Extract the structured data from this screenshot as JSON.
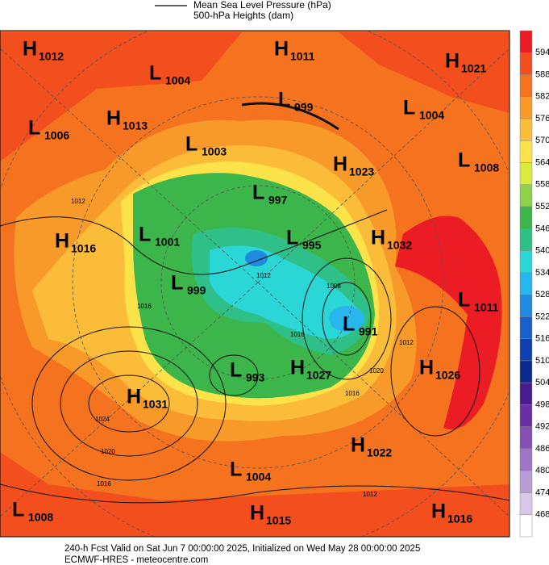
{
  "legend": [
    {
      "label": "Mean Sea Level Pressure (hPa)"
    },
    {
      "label": "500-hPa Heights (dam)"
    }
  ],
  "colorbar": {
    "labels": [
      "594",
      "588",
      "582",
      "576",
      "570",
      "564",
      "558",
      "552",
      "546",
      "540",
      "534",
      "528",
      "522",
      "516",
      "510",
      "504",
      "498",
      "492",
      "486",
      "480",
      "474",
      "468"
    ],
    "colors": [
      "#ec1c24",
      "#f24e1e",
      "#f5721f",
      "#f89a2a",
      "#fbbc3a",
      "#fde34a",
      "#d8ec3e",
      "#8fd14a",
      "#3cb54a",
      "#2fc08a",
      "#2bd6d6",
      "#27b6ee",
      "#1f8be0",
      "#1760cc",
      "#1040b0",
      "#0c2a8c",
      "#4b1a8c",
      "#6a2fa0",
      "#8451b3",
      "#9f76c5",
      "#b99dd8",
      "#d7c8ea",
      "#ffffff"
    ]
  },
  "centers": [
    {
      "kind": "H",
      "value": "1012"
    },
    {
      "kind": "L",
      "value": "1004"
    },
    {
      "kind": "H",
      "value": "1011"
    },
    {
      "kind": "H",
      "value": "1021"
    },
    {
      "kind": "L",
      "value": "999"
    },
    {
      "kind": "L",
      "value": "1004"
    },
    {
      "kind": "L",
      "value": "1006"
    },
    {
      "kind": "H",
      "value": "1013"
    },
    {
      "kind": "L",
      "value": "1003"
    },
    {
      "kind": "H",
      "value": "1023"
    },
    {
      "kind": "L",
      "value": "1008"
    },
    {
      "kind": "L",
      "value": "997"
    },
    {
      "kind": "H",
      "value": "1016"
    },
    {
      "kind": "L",
      "value": "1001"
    },
    {
      "kind": "L",
      "value": "995"
    },
    {
      "kind": "H",
      "value": "1032"
    },
    {
      "kind": "L",
      "value": "999"
    },
    {
      "kind": "L",
      "value": "1011"
    },
    {
      "kind": "L",
      "value": "991"
    },
    {
      "kind": "L",
      "value": "993"
    },
    {
      "kind": "H",
      "value": "1027"
    },
    {
      "kind": "H",
      "value": "1026"
    },
    {
      "kind": "H",
      "value": "1031"
    },
    {
      "kind": "H",
      "value": "1022"
    },
    {
      "kind": "L",
      "value": "1004"
    },
    {
      "kind": "L",
      "value": "1008"
    },
    {
      "kind": "H",
      "value": "1015"
    },
    {
      "kind": "H",
      "value": "1016"
    }
  ],
  "contour_labels": [
    "1012",
    "1016",
    "1020",
    "1024",
    "1020",
    "1016",
    "1012",
    "1008",
    "1016",
    "1012",
    "1016",
    "1012"
  ],
  "footer": {
    "line1": "240-h Fcst Valid on Sat Jun  7 00:00:00 2025, Initialized on Wed May 28 00:00:00 2025",
    "line2": "ECMWF-HRES  - meteocentre.com"
  }
}
